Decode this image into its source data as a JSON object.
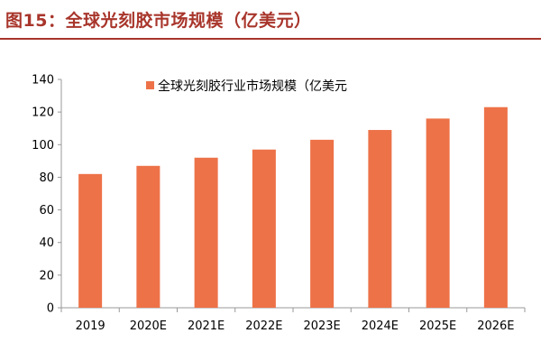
{
  "figure": {
    "title": "图15：全球光刻胶市场规模（亿美元）"
  },
  "colors": {
    "bar": "#ed7248",
    "title": "#a8352b",
    "axis": "#999999"
  },
  "chart_data": {
    "type": "bar",
    "categories": [
      "2019",
      "2020E",
      "2021E",
      "2022E",
      "2023E",
      "2024E",
      "2025E",
      "2026E"
    ],
    "series": [
      {
        "name": "全球光刻胶行业市场规模（亿美元",
        "values": [
          82,
          87,
          92,
          97,
          103,
          109,
          116,
          123
        ]
      }
    ],
    "ylim": [
      0,
      140
    ],
    "yticks": [
      0,
      20,
      40,
      60,
      80,
      100,
      120,
      140
    ],
    "grid": false,
    "legend": "top"
  }
}
